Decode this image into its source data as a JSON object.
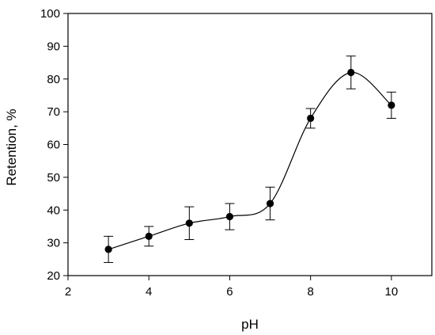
{
  "chart_data": {
    "type": "line",
    "title": "",
    "xlabel": "pH",
    "ylabel": "Retention, %",
    "xlim": [
      2,
      11
    ],
    "ylim": [
      20,
      100
    ],
    "xticks": [
      2,
      4,
      6,
      8,
      10
    ],
    "yticks": [
      20,
      30,
      40,
      50,
      60,
      70,
      80,
      90,
      100
    ],
    "grid": false,
    "series": [
      {
        "marker": "circle",
        "line": "smooth",
        "color": "#000000",
        "x": [
          3,
          4,
          5,
          6,
          7,
          8,
          9,
          10
        ],
        "y": [
          28,
          32,
          36,
          38,
          42,
          68,
          82,
          72
        ],
        "err_low": [
          4,
          3,
          5,
          4,
          5,
          3,
          5,
          4
        ],
        "err_high": [
          4,
          3,
          5,
          4,
          5,
          3,
          5,
          4
        ]
      }
    ]
  }
}
